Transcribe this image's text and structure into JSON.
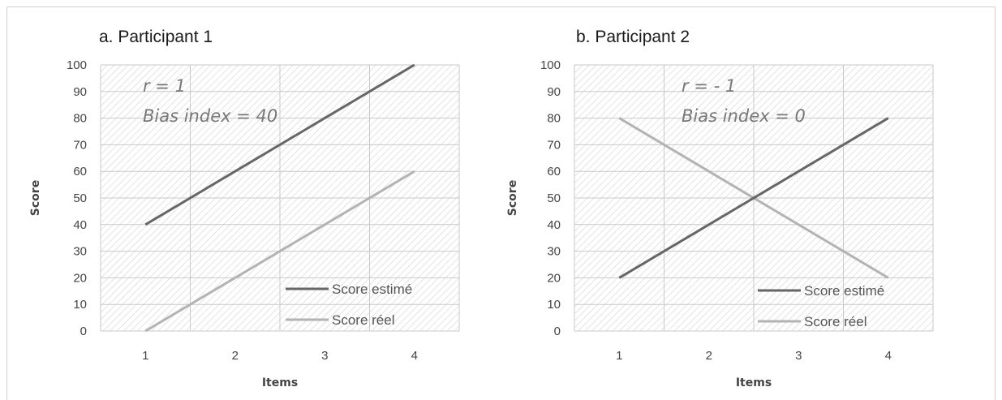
{
  "chart_data": [
    {
      "type": "line",
      "title": "a. Participant 1",
      "xlabel": "Items",
      "ylabel": "Score",
      "categories": [
        1,
        2,
        3,
        4
      ],
      "ylim": [
        0,
        100
      ],
      "yticks": [
        0,
        10,
        20,
        30,
        40,
        50,
        60,
        70,
        80,
        90,
        100
      ],
      "series": [
        {
          "name": "Score estimé",
          "values": [
            40,
            60,
            80,
            100
          ],
          "color": "#666666"
        },
        {
          "name": "Score réel",
          "values": [
            0,
            20,
            40,
            60
          ],
          "color": "#b3b3b3"
        }
      ],
      "annotations": {
        "r": "r = 1",
        "bias": "Bias index = 40"
      },
      "legend": "bottom-right",
      "background": "diagonal-hatch",
      "grid": true
    },
    {
      "type": "line",
      "title": "b. Participant 2",
      "xlabel": "Items",
      "ylabel": "Score",
      "categories": [
        1,
        2,
        3,
        4
      ],
      "ylim": [
        0,
        100
      ],
      "yticks": [
        0,
        10,
        20,
        30,
        40,
        50,
        60,
        70,
        80,
        90,
        100
      ],
      "series": [
        {
          "name": "Score estimé",
          "values": [
            20,
            40,
            60,
            80
          ],
          "color": "#666666"
        },
        {
          "name": "Score réel",
          "values": [
            80,
            60,
            40,
            20
          ],
          "color": "#b3b3b3"
        }
      ],
      "annotations": {
        "r": "r = - 1",
        "bias": "Bias index = 0"
      },
      "legend": "bottom-right",
      "background": "diagonal-hatch",
      "grid": true
    }
  ]
}
